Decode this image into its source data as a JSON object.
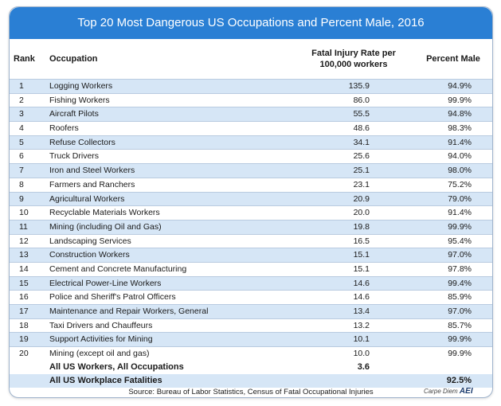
{
  "title": "Top 20 Most Dangerous US Occupations and Percent Male, 2016",
  "headers": {
    "rank": "Rank",
    "occupation": "Occupation",
    "rate_line1": "Fatal Injury Rate per",
    "rate_line2": "100,000 workers",
    "male": "Percent Male"
  },
  "rows": [
    {
      "rank": "1",
      "occupation": "Logging Workers",
      "rate": "135.9",
      "male": "94.9%"
    },
    {
      "rank": "2",
      "occupation": "Fishing Workers",
      "rate": "86.0",
      "male": "99.9%"
    },
    {
      "rank": "3",
      "occupation": "Aircraft Pilots",
      "rate": "55.5",
      "male": "94.8%"
    },
    {
      "rank": "4",
      "occupation": "Roofers",
      "rate": "48.6",
      "male": "98.3%"
    },
    {
      "rank": "5",
      "occupation": "Refuse Collectors",
      "rate": "34.1",
      "male": "91.4%"
    },
    {
      "rank": "6",
      "occupation": "Truck Drivers",
      "rate": "25.6",
      "male": "94.0%"
    },
    {
      "rank": "7",
      "occupation": "Iron and Steel Workers",
      "rate": "25.1",
      "male": "98.0%"
    },
    {
      "rank": "8",
      "occupation": "Farmers and Ranchers",
      "rate": "23.1",
      "male": "75.2%"
    },
    {
      "rank": "9",
      "occupation": "Agricultural Workers",
      "rate": "20.9",
      "male": "79.0%"
    },
    {
      "rank": "10",
      "occupation": "Recyclable Materials Workers",
      "rate": "20.0",
      "male": "91.4%"
    },
    {
      "rank": "11",
      "occupation": "Mining (including Oil and Gas)",
      "rate": "19.8",
      "male": "99.9%"
    },
    {
      "rank": "12",
      "occupation": "Landscaping Services",
      "rate": "16.5",
      "male": "95.4%"
    },
    {
      "rank": "13",
      "occupation": "Construction Workers",
      "rate": "15.1",
      "male": "97.0%"
    },
    {
      "rank": "14",
      "occupation": "Cement and Concrete Manufacturing",
      "rate": "15.1",
      "male": "97.8%"
    },
    {
      "rank": "15",
      "occupation": "Electrical Power-Line Workers",
      "rate": "14.6",
      "male": "99.4%"
    },
    {
      "rank": "16",
      "occupation": "Police and Sheriff's Patrol Officers",
      "rate": "14.6",
      "male": "85.9%"
    },
    {
      "rank": "17",
      "occupation": "Maintenance and Repair Workers, General",
      "rate": "13.4",
      "male": "97.0%"
    },
    {
      "rank": "18",
      "occupation": "Taxi Drivers and Chauffeurs",
      "rate": "13.2",
      "male": "85.7%"
    },
    {
      "rank": "19",
      "occupation": "Support Activities for Mining",
      "rate": "10.1",
      "male": "99.9%"
    },
    {
      "rank": "20",
      "occupation": "Mining (except oil and gas)",
      "rate": "10.0",
      "male": "99.9%"
    }
  ],
  "totals": {
    "all_workers_label": "All US Workers, All Occupations",
    "all_workers_rate": "3.6",
    "all_fatalities_label": "All US Workplace Fatalities",
    "all_fatalities_male": "92.5%"
  },
  "source": "Source: Bureau of Labor Statistics, Census of Fatal Occupational Injuries",
  "brand": {
    "prefix": "Carpe Diem",
    "logo_text": "AEI"
  },
  "colors": {
    "title_bar": "#2a7fd4",
    "alt_row": "#d6e6f6",
    "border": "#9fb3cc"
  }
}
